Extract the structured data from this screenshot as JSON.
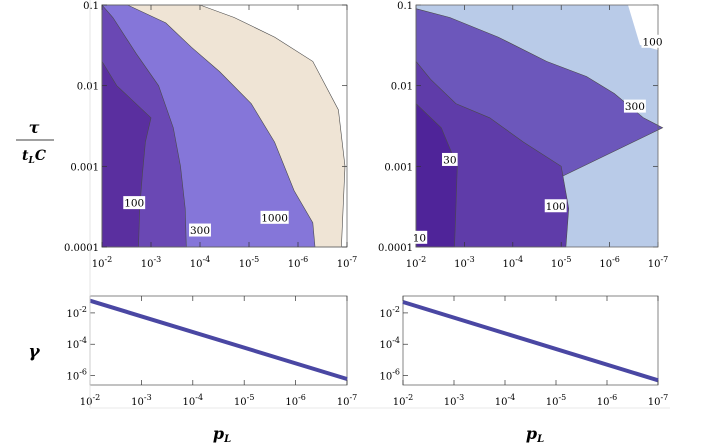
{
  "colors": {
    "level_lt100": "#5a2f9f",
    "level_100_300": "#6a48b4",
    "level_300_1000": "#8576d9",
    "level_gt1000": "#efe4d5",
    "right_lt30": "#4f2499",
    "right_30_100": "#5f3ca9",
    "right_100_300": "#6c57bb",
    "right_gt300": "#b9cbe8",
    "gamma_line": "#4a47a3"
  },
  "labels": {
    "y_numerator": "τ",
    "y_denominator": "t_L C",
    "gamma": "γ",
    "x_left": "p_L",
    "x_right": "p_L"
  },
  "chart_data": [
    {
      "type": "contour",
      "panel": "top-left",
      "x_scale": "log",
      "xlim": [
        0.01,
        1e-07
      ],
      "y_scale": "log",
      "ylim": [
        0.0001,
        0.1
      ],
      "x_ticks": [
        0.01,
        0.001,
        0.0001,
        1e-05,
        1e-06,
        1e-07
      ],
      "y_ticks": [
        "0.1",
        "0.01",
        "0.001",
        "0.0001"
      ],
      "contour_labels": [
        {
          "text": "100",
          "x": 0.0022,
          "y": 0.00035
        },
        {
          "text": "300",
          "x": 0.0001,
          "y": 0.00016
        },
        {
          "text": "1000",
          "x": 3e-06,
          "y": 0.00023
        }
      ],
      "contours": [
        {
          "level": 100,
          "points": [
            [
              0.0018,
              0.0001
            ],
            [
              0.0017,
              0.0003
            ],
            [
              0.0015,
              0.0008
            ],
            [
              0.0013,
              0.002
            ],
            [
              0.001,
              0.004
            ],
            [
              0.005,
              0.01
            ],
            [
              0.01,
              0.02
            ]
          ]
        },
        {
          "level": 300,
          "points": [
            [
              0.00019,
              0.0001
            ],
            [
              0.0002,
              0.0003
            ],
            [
              0.00025,
              0.001
            ],
            [
              0.00035,
              0.003
            ],
            [
              0.0007,
              0.01
            ],
            [
              0.002,
              0.025
            ],
            [
              0.006,
              0.07
            ],
            [
              0.01,
              0.1
            ]
          ]
        },
        {
          "level": 1000,
          "points": [
            [
              4.5e-07,
              0.0001
            ],
            [
              5e-07,
              0.0002
            ],
            [
              1.2e-06,
              0.0005
            ],
            [
              3e-06,
              0.002
            ],
            [
              9e-06,
              0.006
            ],
            [
              4e-05,
              0.015
            ],
            [
              0.00015,
              0.03
            ],
            [
              0.0005,
              0.06
            ],
            [
              0.003,
              0.1
            ]
          ]
        },
        {
          "level": 1001,
          "points": [
            [
              1.3e-07,
              0.0001
            ],
            [
              1.2e-07,
              0.0003
            ],
            [
              1.1e-07,
              0.001
            ],
            [
              1.5e-07,
              0.005
            ],
            [
              5e-07,
              0.02
            ],
            [
              3e-06,
              0.04
            ],
            [
              2e-05,
              0.07
            ],
            [
              0.0001,
              0.1
            ]
          ]
        }
      ]
    },
    {
      "type": "contour",
      "panel": "top-right",
      "x_scale": "log",
      "xlim": [
        0.01,
        1e-07
      ],
      "y_scale": "log",
      "ylim": [
        0.0001,
        0.1
      ],
      "x_ticks": [
        0.01,
        0.001,
        0.0001,
        1e-05,
        1e-06,
        1e-07
      ],
      "y_ticks": [
        "0.1",
        "0.01",
        "0.001",
        "0.0001"
      ],
      "contour_labels": [
        {
          "text": "10",
          "x": 0.0085,
          "y": 0.00013
        },
        {
          "text": "30",
          "x": 0.002,
          "y": 0.0012
        },
        {
          "text": "100",
          "x": 1.3e-05,
          "y": 0.00032
        },
        {
          "text": "300",
          "x": 3e-07,
          "y": 0.0055
        },
        {
          "text": "100",
          "x": 1.3e-07,
          "y": 0.035
        }
      ],
      "contours": [
        {
          "level": 30,
          "points": [
            [
              0.0016,
              0.0001
            ],
            [
              0.0015,
              0.0003
            ],
            [
              0.0014,
              0.001
            ],
            [
              0.003,
              0.003
            ],
            [
              0.01,
              0.006
            ]
          ]
        },
        {
          "level": 100,
          "points": [
            [
              8e-06,
              0.0001
            ],
            [
              7e-06,
              0.0003
            ],
            [
              1e-05,
              0.001
            ],
            [
              6e-05,
              0.002
            ],
            [
              0.0003,
              0.004
            ],
            [
              0.0015,
              0.006
            ],
            [
              0.005,
              0.012
            ],
            [
              0.01,
              0.02
            ]
          ]
        },
        {
          "level": 300,
          "points": [
            [
              8e-08,
              0.003
            ],
            [
              2e-07,
              0.004
            ],
            [
              8e-07,
              0.008
            ],
            [
              3e-06,
              0.013
            ],
            [
              2e-05,
              0.02
            ],
            [
              0.0002,
              0.04
            ],
            [
              0.002,
              0.07
            ],
            [
              0.01,
              0.09
            ]
          ]
        }
      ]
    },
    {
      "type": "line",
      "panel": "bottom-left",
      "x_scale": "log",
      "xlim": [
        0.01,
        1e-07
      ],
      "y_scale": "log",
      "ylim": [
        2.5e-07,
        0.12
      ],
      "x_ticks": [
        0.01,
        0.001,
        0.0001,
        1e-05,
        1e-06,
        1e-07
      ],
      "y_ticks": [
        0.01,
        0.0001,
        1e-06
      ],
      "x": [
        0.01,
        1e-07
      ],
      "y": [
        0.06,
        6e-07
      ]
    },
    {
      "type": "line",
      "panel": "bottom-right",
      "x_scale": "log",
      "xlim": [
        0.01,
        1e-07
      ],
      "y_scale": "log",
      "ylim": [
        2.5e-07,
        0.12
      ],
      "x_ticks": [
        0.01,
        0.001,
        0.0001,
        1e-05,
        1e-06,
        1e-07
      ],
      "y_ticks": [
        0.01,
        0.0001,
        1e-06
      ],
      "x": [
        0.01,
        1e-07
      ],
      "y": [
        0.05,
        5e-07
      ]
    }
  ]
}
